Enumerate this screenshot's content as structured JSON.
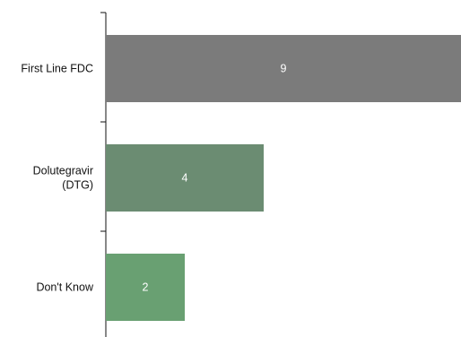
{
  "chart_data": {
    "type": "bar",
    "orientation": "horizontal",
    "title": "",
    "xlabel": "",
    "ylabel": "",
    "categories": [
      [
        "First Line FDC"
      ],
      [
        "Dolutegravir",
        "(DTG)"
      ],
      [
        "Don't Know"
      ]
    ],
    "values": [
      9,
      4,
      2
    ],
    "data_labels": [
      "9",
      "4",
      "2"
    ],
    "colors": [
      "#7b7b7b",
      "#6b8c72",
      "#69a072"
    ],
    "xlim": [
      0,
      9
    ],
    "grid": false,
    "legend": "none"
  }
}
